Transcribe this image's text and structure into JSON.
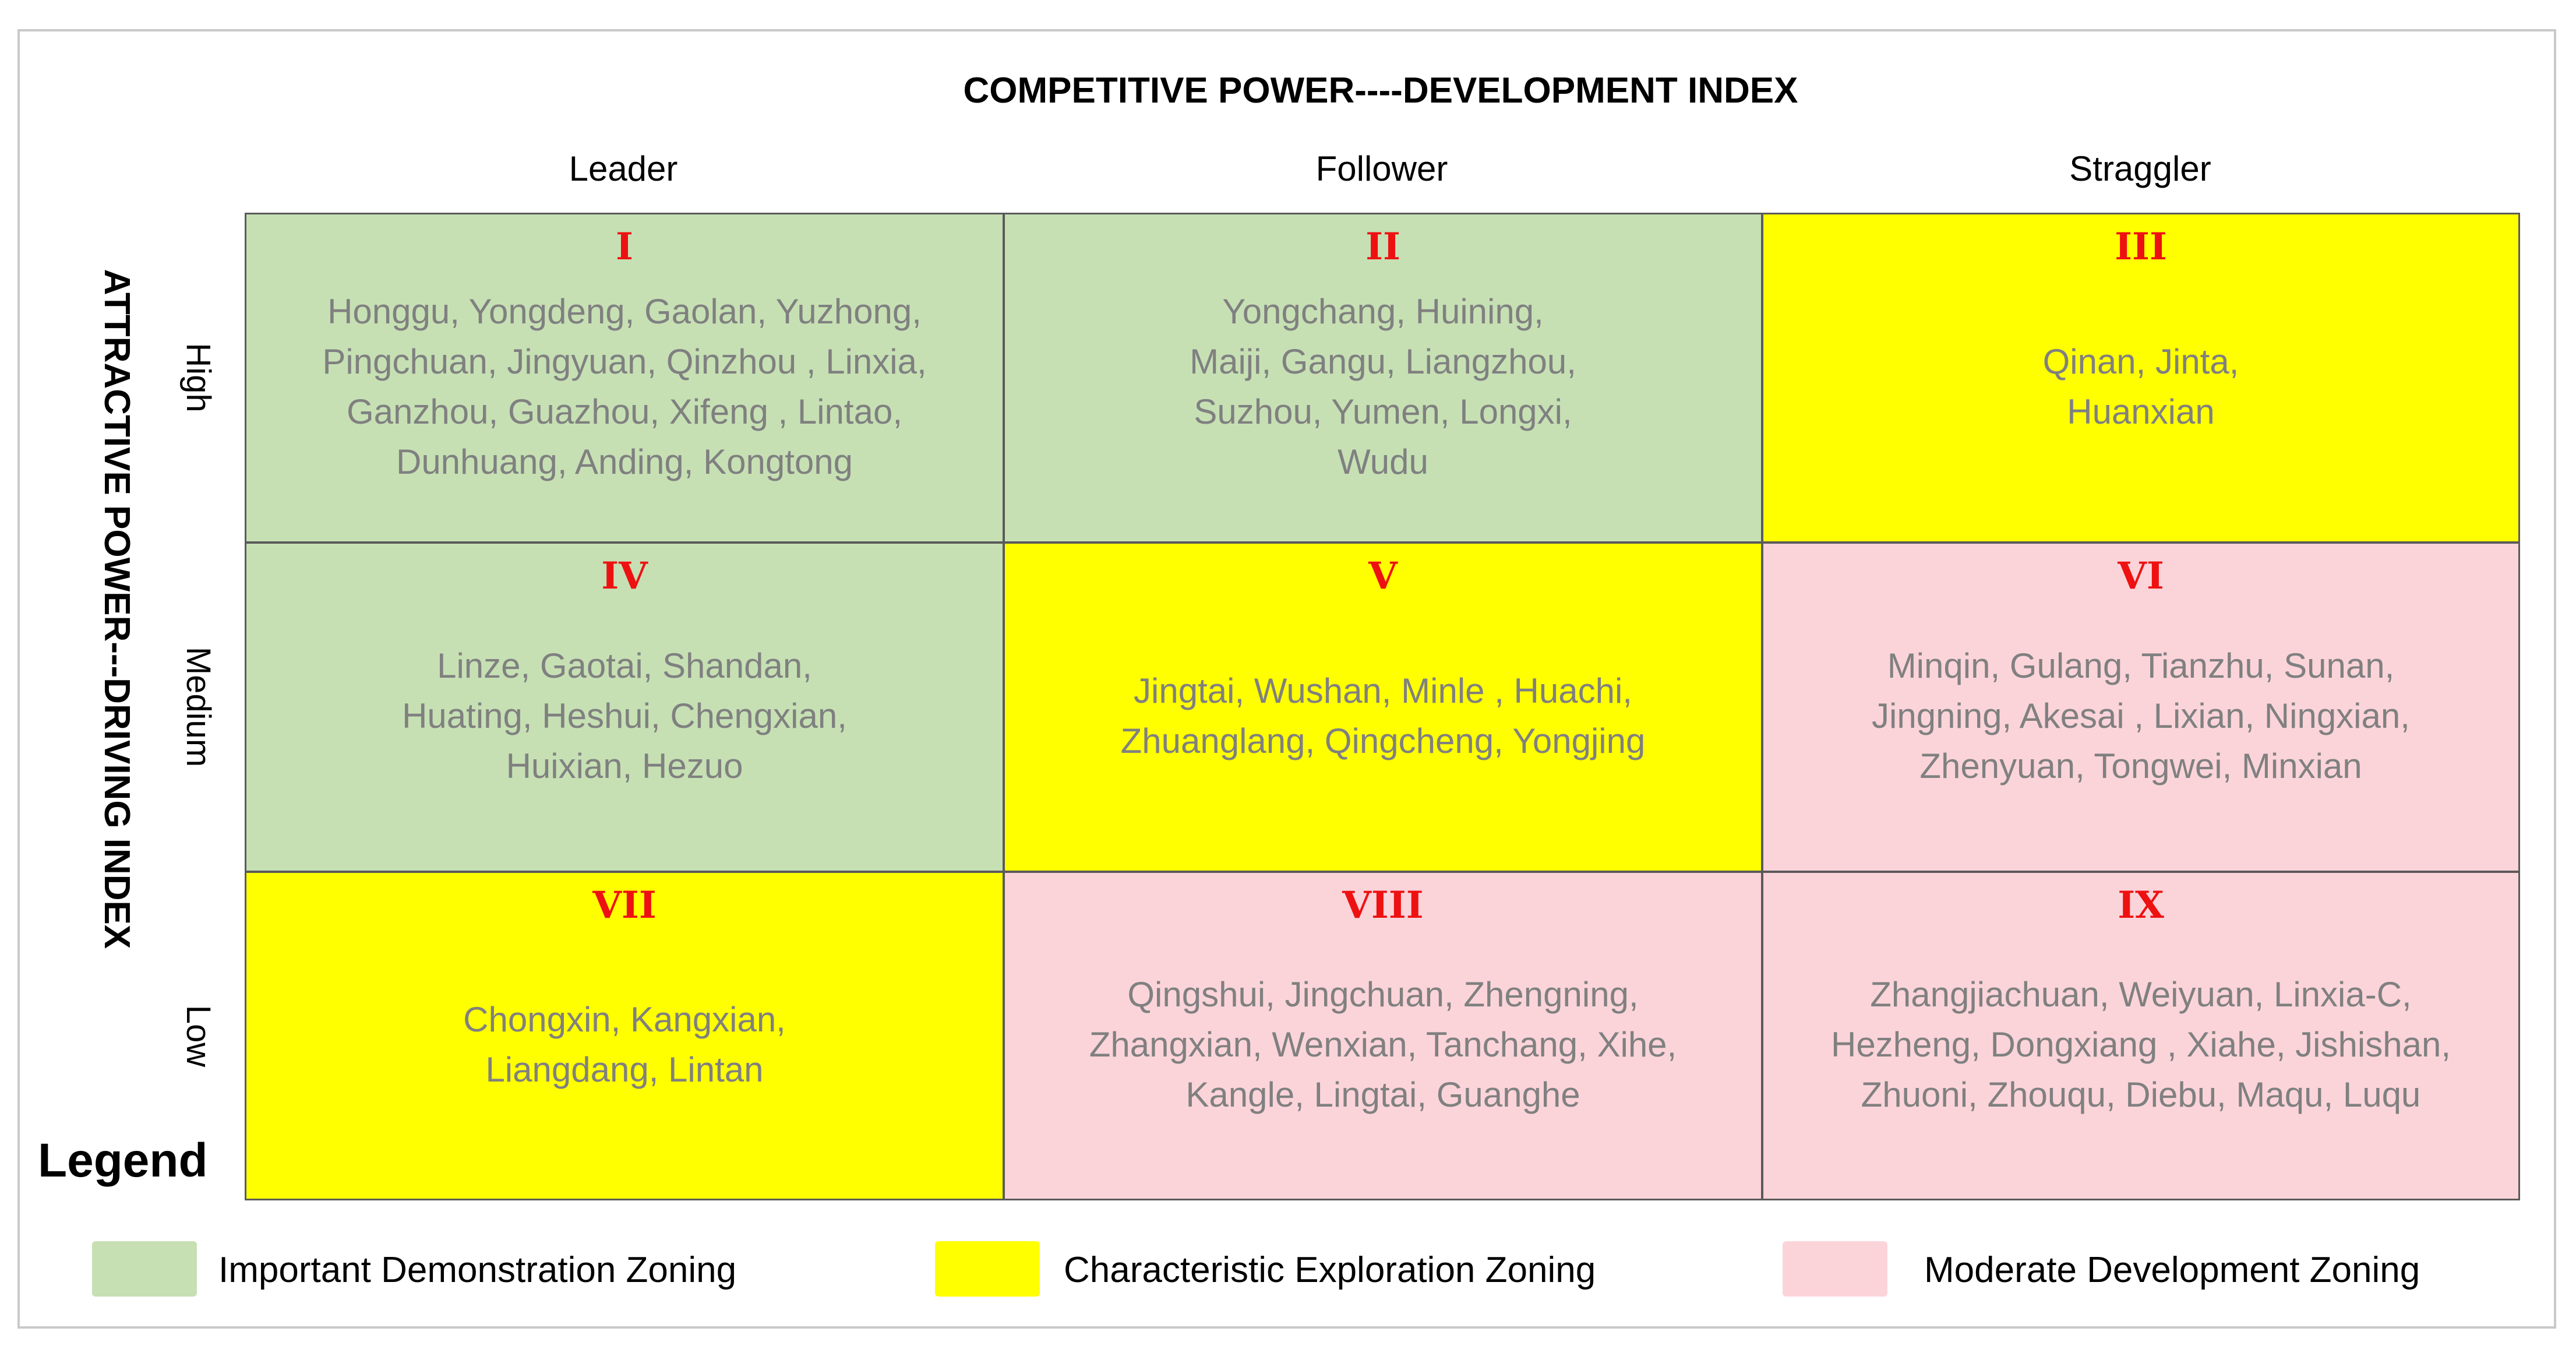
{
  "title_x": "COMPETITIVE POWER----DEVELOPMENT INDEX",
  "title_y": "ATTRACTIVE POWER---DRIVING INDEX",
  "columns": [
    "Leader",
    "Follower",
    "Straggler"
  ],
  "rows": [
    "High",
    "Medium",
    "Low"
  ],
  "colors": {
    "green": "#c6e0b4",
    "yellow": "#ffff00",
    "pink": "#fbd4da",
    "numeral": "#ee1111",
    "names": "#808080"
  },
  "cells": [
    {
      "numeral": "I",
      "zone": "green",
      "names": "Honggu, Yongdeng, Gaolan, Yuzhong,\nPingchuan, Jingyuan, Qinzhou , Linxia,\nGanzhou, Guazhou, Xifeng , Lintao,\nDunhuang, Anding, Kongtong"
    },
    {
      "numeral": "II",
      "zone": "green",
      "names": "Yongchang, Huining,\nMaiji, Gangu, Liangzhou,\nSuzhou, Yumen, Longxi,\nWudu"
    },
    {
      "numeral": "III",
      "zone": "yellow",
      "names": "Qinan, Jinta,\nHuanxian"
    },
    {
      "numeral": "IV",
      "zone": "green",
      "names": "Linze, Gaotai, Shandan,\nHuating, Heshui, Chengxian,\nHuixian, Hezuo"
    },
    {
      "numeral": "V",
      "zone": "yellow",
      "names": "Jingtai, Wushan, Minle , Huachi,\nZhuanglang, Qingcheng, Yongjing"
    },
    {
      "numeral": "VI",
      "zone": "pink",
      "names": "Minqin, Gulang, Tianzhu, Sunan,\nJingning, Akesai , Lixian, Ningxian,\nZhenyuan, Tongwei, Minxian"
    },
    {
      "numeral": "VII",
      "zone": "yellow",
      "names": "Chongxin, Kangxian,\nLiangdang, Lintan"
    },
    {
      "numeral": "VIII",
      "zone": "pink",
      "names": "Qingshui, Jingchuan, Zhengning,\nZhangxian, Wenxian, Tanchang, Xihe,\nKangle, Lingtai, Guanghe"
    },
    {
      "numeral": "IX",
      "zone": "pink",
      "names": "Zhangjiachuan, Weiyuan, Linxia-C,\nHezheng, Dongxiang , Xiahe, Jishishan,\nZhuoni, Zhouqu, Diebu, Maqu, Luqu"
    }
  ],
  "legend": {
    "title": "Legend",
    "items": [
      {
        "label": "Important Demonstration Zoning",
        "color": "#c6e0b4"
      },
      {
        "label": "Characteristic Exploration Zoning",
        "color": "#ffff00"
      },
      {
        "label": "Moderate Development Zoning",
        "color": "#fbd4da"
      }
    ]
  }
}
